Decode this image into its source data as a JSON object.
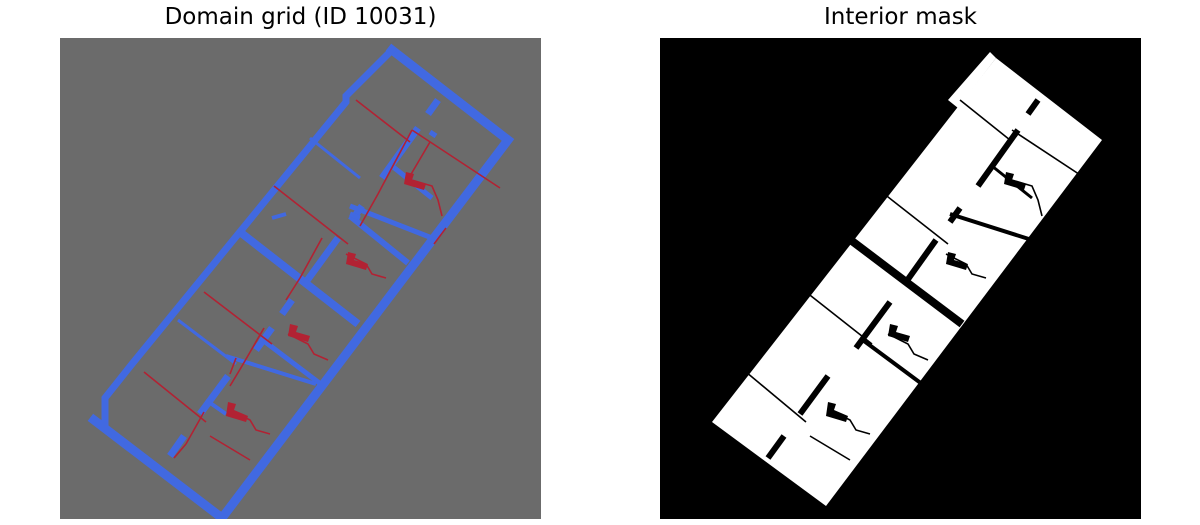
{
  "figure": {
    "left_title": "Domain grid (ID 10031)",
    "right_title": "Interior mask"
  },
  "colors": {
    "background": "#6b6b6b",
    "wall": "#4169e1",
    "fixture": "#b22233",
    "mask_background": "#000000",
    "mask_interior": "#ffffff"
  }
}
